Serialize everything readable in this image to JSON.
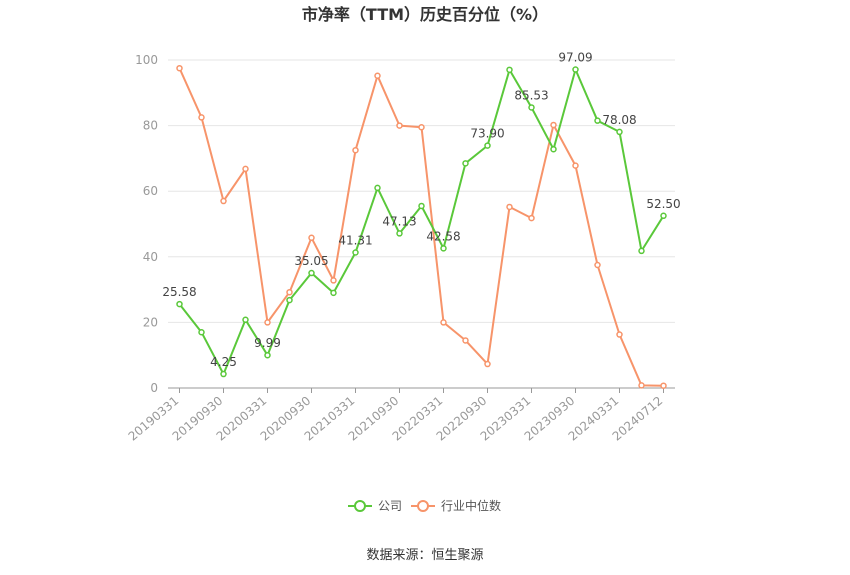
{
  "chart_data": {
    "type": "line",
    "title": "市净率（TTM）历史百分位（%）",
    "source": "数据来源：恒生聚源",
    "ylim": [
      0,
      100
    ],
    "yticks": [
      0,
      20,
      40,
      60,
      80,
      100
    ],
    "xtick_labels": [
      "20190331",
      "20190930",
      "20200331",
      "20200930",
      "20210331",
      "20210930",
      "20220331",
      "20220930",
      "20230331",
      "20230930",
      "20240331",
      "20240712"
    ],
    "grid": true,
    "legend_position": "bottom",
    "series": [
      {
        "name": "公司",
        "color": "#5ac83a",
        "values": [
          25.58,
          17,
          4.25,
          20.8,
          9.99,
          26.8,
          35.05,
          29,
          41.31,
          61,
          47.13,
          55.5,
          42.58,
          68.5,
          73.9,
          97.0,
          85.53,
          72.8,
          97.09,
          81.5,
          78.08,
          41.8,
          52.5
        ],
        "labels": {
          "0": "25.58",
          "2": "4.25",
          "4": "9.99",
          "6": "35.05",
          "8": "41.31",
          "10": "47.13",
          "12": "42.58",
          "14": "73.90",
          "16": "85.53",
          "18": "97.09",
          "20": "78.08",
          "22": "52.50"
        }
      },
      {
        "name": "行业中位数",
        "color": "#f7946a",
        "values": [
          97.5,
          82.5,
          57,
          66.8,
          20,
          29.2,
          45.8,
          32.8,
          72.5,
          95.2,
          80,
          79.5,
          20,
          14.5,
          7.3,
          55.2,
          51.8,
          80.2,
          67.8,
          37.5,
          16.3,
          0.8,
          0.7
        ]
      }
    ]
  }
}
